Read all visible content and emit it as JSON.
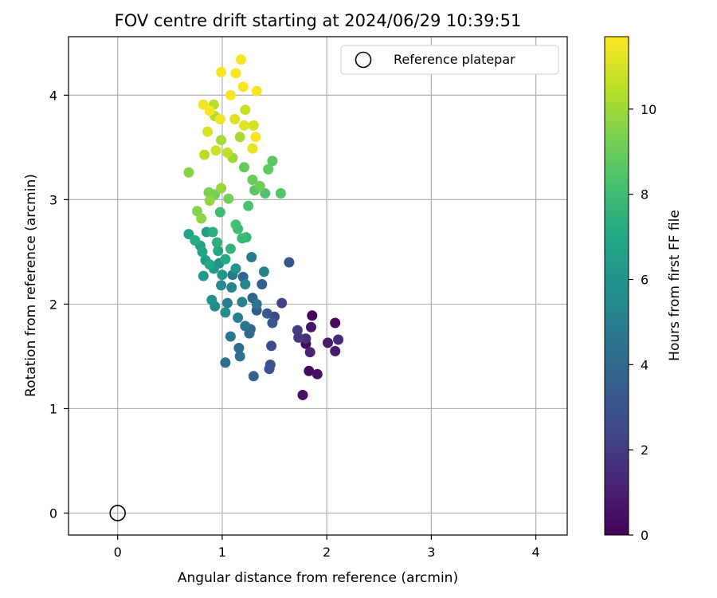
{
  "chart_data": {
    "type": "scatter",
    "title": "FOV centre drift starting at 2024/06/29 10:39:51",
    "xlabel": "Angular distance from reference (arcmin)",
    "ylabel": "Rotation from reference (arcmin)",
    "xlim": [
      -0.47,
      4.3
    ],
    "ylim": [
      -0.21,
      4.56
    ],
    "xticks": [
      "0",
      "1",
      "2",
      "3",
      "4"
    ],
    "yticks": [
      "0",
      "1",
      "2",
      "3",
      "4"
    ],
    "grid": true,
    "legend": {
      "placement": "top-right",
      "entries": [
        "Reference platepar"
      ]
    },
    "reference_point": {
      "x": 0,
      "y": 0,
      "label": "Reference platepar"
    },
    "colorbar": {
      "label": "Hours from first FF file",
      "colormap": "viridis",
      "range": [
        0,
        11.7
      ],
      "ticks": [
        "0",
        "2",
        "4",
        "6",
        "8",
        "10"
      ]
    },
    "points": [
      [
        1.86,
        1.89,
        0.1
      ],
      [
        2.08,
        1.82,
        0.2
      ],
      [
        1.8,
        1.62,
        0.3
      ],
      [
        1.83,
        1.36,
        0.4
      ],
      [
        1.91,
        1.33,
        0.5
      ],
      [
        1.77,
        1.13,
        0.6
      ],
      [
        1.85,
        1.78,
        0.7
      ],
      [
        2.08,
        1.55,
        0.8
      ],
      [
        2.01,
        1.63,
        0.9
      ],
      [
        1.84,
        1.54,
        1.1
      ],
      [
        2.11,
        1.66,
        1.4
      ],
      [
        1.8,
        1.67,
        1.6
      ],
      [
        1.73,
        1.68,
        1.9
      ],
      [
        1.72,
        1.75,
        2.1
      ],
      [
        1.57,
        2.01,
        2.3
      ],
      [
        1.5,
        1.88,
        2.5
      ],
      [
        1.47,
        1.6,
        2.7
      ],
      [
        1.46,
        1.42,
        2.9
      ],
      [
        1.45,
        1.38,
        3.0
      ],
      [
        1.64,
        2.4,
        3.1
      ],
      [
        1.48,
        1.82,
        3.2
      ],
      [
        1.43,
        1.91,
        3.3
      ],
      [
        1.33,
        1.94,
        3.4
      ],
      [
        1.38,
        2.19,
        3.5
      ],
      [
        1.3,
        1.31,
        3.6
      ],
      [
        1.27,
        1.76,
        3.7
      ],
      [
        1.29,
        2.06,
        3.8
      ],
      [
        1.2,
        2.26,
        3.9
      ],
      [
        1.26,
        1.72,
        4.0
      ],
      [
        1.16,
        1.58,
        4.1
      ],
      [
        1.03,
        1.44,
        4.2
      ],
      [
        1.17,
        1.5,
        4.3
      ],
      [
        1.33,
        2.0,
        4.4
      ],
      [
        1.22,
        1.79,
        4.5
      ],
      [
        1.08,
        1.69,
        4.6
      ],
      [
        1.1,
        2.28,
        4.7
      ],
      [
        1.28,
        2.45,
        4.8
      ],
      [
        1.05,
        2.01,
        4.9
      ],
      [
        1.15,
        1.87,
        5.0
      ],
      [
        1.19,
        2.02,
        5.1
      ],
      [
        1.4,
        2.31,
        5.2
      ],
      [
        1.22,
        2.19,
        5.3
      ],
      [
        1.09,
        2.16,
        5.4
      ],
      [
        0.99,
        2.18,
        5.5
      ],
      [
        0.93,
        1.98,
        5.6
      ],
      [
        1.03,
        1.92,
        5.7
      ],
      [
        0.97,
        2.39,
        5.8
      ],
      [
        0.9,
        2.04,
        5.9
      ],
      [
        1.13,
        2.34,
        6.0
      ],
      [
        1.0,
        2.28,
        6.1
      ],
      [
        0.92,
        2.34,
        6.2
      ],
      [
        0.82,
        2.27,
        6.3
      ],
      [
        0.84,
        2.42,
        6.4
      ],
      [
        0.85,
        2.69,
        6.5
      ],
      [
        0.79,
        2.56,
        6.6
      ],
      [
        0.68,
        2.67,
        6.7
      ],
      [
        0.81,
        2.5,
        6.8
      ],
      [
        0.88,
        2.38,
        6.9
      ],
      [
        0.96,
        2.51,
        7.0
      ],
      [
        1.03,
        2.43,
        7.1
      ],
      [
        0.74,
        2.61,
        7.2
      ],
      [
        0.91,
        2.69,
        7.3
      ],
      [
        0.95,
        2.59,
        7.4
      ],
      [
        1.08,
        2.53,
        7.6
      ],
      [
        1.23,
        2.64,
        7.8
      ],
      [
        1.19,
        2.63,
        7.9
      ],
      [
        1.15,
        2.72,
        8.0
      ],
      [
        0.98,
        2.88,
        8.1
      ],
      [
        1.13,
        2.76,
        8.2
      ],
      [
        1.25,
        2.94,
        8.3
      ],
      [
        1.41,
        3.06,
        8.4
      ],
      [
        1.56,
        3.06,
        8.5
      ],
      [
        1.31,
        3.09,
        8.6
      ],
      [
        1.48,
        3.37,
        8.7
      ],
      [
        1.44,
        3.29,
        8.8
      ],
      [
        1.21,
        3.31,
        8.9
      ],
      [
        1.29,
        3.19,
        9.0
      ],
      [
        1.36,
        3.13,
        9.1
      ],
      [
        1.06,
        3.01,
        9.2
      ],
      [
        0.93,
        3.05,
        9.3
      ],
      [
        0.87,
        3.07,
        9.4
      ],
      [
        0.76,
        2.89,
        9.5
      ],
      [
        0.68,
        3.26,
        9.6
      ],
      [
        0.8,
        2.82,
        9.7
      ],
      [
        0.88,
        2.99,
        9.8
      ],
      [
        0.99,
        3.11,
        9.9
      ],
      [
        1.1,
        3.4,
        10.0
      ],
      [
        0.99,
        3.57,
        10.1
      ],
      [
        1.17,
        3.6,
        10.2
      ],
      [
        0.93,
        3.8,
        10.3
      ],
      [
        0.92,
        3.91,
        10.4
      ],
      [
        0.83,
        3.43,
        10.5
      ],
      [
        1.05,
        3.45,
        10.6
      ],
      [
        1.22,
        3.86,
        10.7
      ],
      [
        0.94,
        3.47,
        10.8
      ],
      [
        1.3,
        3.71,
        10.9
      ],
      [
        0.86,
        3.65,
        11.0
      ],
      [
        1.12,
        3.77,
        11.1
      ],
      [
        1.21,
        3.71,
        11.2
      ],
      [
        1.29,
        3.49,
        11.3
      ],
      [
        0.98,
        3.77,
        11.4
      ],
      [
        0.82,
        3.91,
        11.5
      ],
      [
        1.08,
        4.0,
        11.6
      ],
      [
        1.13,
        4.21,
        11.6
      ],
      [
        0.99,
        4.22,
        11.6
      ],
      [
        1.18,
        4.34,
        11.6
      ],
      [
        1.2,
        4.08,
        11.6
      ],
      [
        1.33,
        4.04,
        11.6
      ],
      [
        1.32,
        3.6,
        11.6
      ],
      [
        0.88,
        3.85,
        11.6
      ]
    ]
  }
}
